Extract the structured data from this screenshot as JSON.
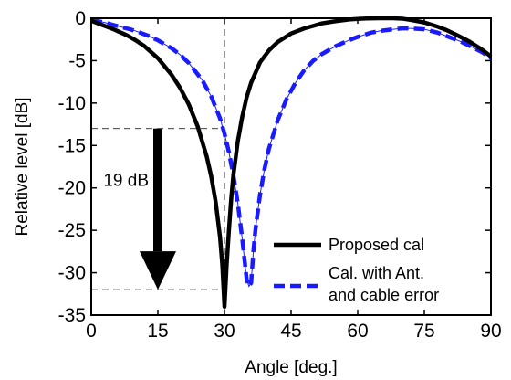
{
  "chart_data": {
    "type": "line",
    "xlabel": "Angle [deg.]",
    "ylabel": "Relative level [dB]",
    "xlim": [
      0,
      90
    ],
    "ylim": [
      -35,
      0
    ],
    "xticks": [
      0,
      15,
      30,
      45,
      60,
      75,
      90
    ],
    "yticks": [
      0,
      -5,
      -10,
      -15,
      -20,
      -25,
      -30,
      -35
    ],
    "x_tick_labels": [
      "0",
      "15",
      "30",
      "45",
      "60",
      "75",
      "90"
    ],
    "y_tick_labels": [
      "0",
      "-5",
      "-10",
      "-15",
      "-20",
      "-25",
      "-30",
      "-35"
    ],
    "legend_position": "bottom-right",
    "series": [
      {
        "name": "Proposed cal",
        "color": "#000000",
        "style": "solid",
        "x": [
          0,
          2,
          5,
          8,
          10,
          12,
          15,
          18,
          20,
          22,
          24,
          26,
          27,
          28,
          29,
          29.5,
          30,
          30.5,
          31,
          31.5,
          32,
          33,
          34,
          35,
          36,
          38,
          40,
          42,
          45,
          48,
          50,
          52,
          55,
          58,
          60,
          62,
          65,
          68,
          70,
          72,
          75,
          78,
          80,
          82,
          85,
          88,
          90
        ],
        "y": [
          -0.3,
          -0.7,
          -1.3,
          -2.0,
          -2.6,
          -3.3,
          -4.7,
          -6.6,
          -8.2,
          -10.2,
          -12.8,
          -16.3,
          -18.6,
          -21.6,
          -25.8,
          -29,
          -34,
          -29,
          -25,
          -21.4,
          -18.5,
          -14.5,
          -11.6,
          -9.3,
          -7.6,
          -5.2,
          -3.8,
          -2.8,
          -1.8,
          -1.2,
          -0.9,
          -0.6,
          -0.35,
          -0.15,
          -0.08,
          -0.03,
          0,
          0,
          -0.05,
          -0.2,
          -0.5,
          -1.0,
          -1.4,
          -1.9,
          -2.7,
          -3.7,
          -4.5
        ]
      },
      {
        "name": "Cal. with Ant. and cable error",
        "legend_lines": [
          "Cal. with Ant.",
          "and cable error"
        ],
        "color": "#1a1aff",
        "style": "dashed",
        "x": [
          0,
          3,
          5,
          8,
          10,
          13,
          15,
          18,
          20,
          22,
          25,
          27,
          29,
          30,
          31,
          32,
          33,
          34,
          35,
          35.5,
          36,
          36.5,
          37,
          38,
          39,
          40,
          42,
          44,
          46,
          48,
          50,
          52,
          55,
          58,
          60,
          63,
          65,
          68,
          70,
          72,
          75,
          78,
          80,
          83,
          85,
          88,
          90
        ],
        "y": [
          -0.2,
          -0.5,
          -0.8,
          -1.2,
          -1.5,
          -2.1,
          -2.6,
          -3.5,
          -4.3,
          -5.3,
          -7.3,
          -9.2,
          -11.8,
          -13.6,
          -15.8,
          -18.5,
          -21.8,
          -26,
          -30.8,
          -31.6,
          -31.2,
          -27.5,
          -24.8,
          -20.8,
          -17.8,
          -15.4,
          -12.0,
          -9.5,
          -7.6,
          -6.1,
          -5.0,
          -4.2,
          -3.3,
          -2.6,
          -2.2,
          -1.7,
          -1.5,
          -1.3,
          -1.2,
          -1.2,
          -1.3,
          -1.7,
          -2.1,
          -2.7,
          -3.2,
          -4.0,
          -4.7
        ]
      }
    ],
    "annotations": {
      "arrow_label": "19 dB",
      "arrow_x": 15,
      "arrow_from_y": -13,
      "arrow_to_y": -32,
      "hline_top_y": -13,
      "hline_bottom_y": -32,
      "vline_x": 30
    }
  }
}
